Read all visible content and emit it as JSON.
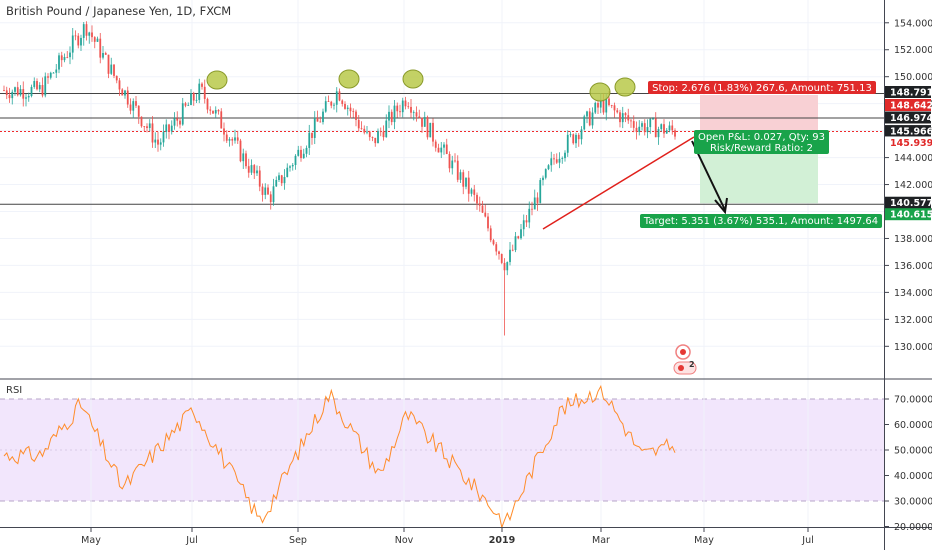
{
  "header": {
    "title": "British Pound / Japanese Yen, 1D, FXCM"
  },
  "rsi": {
    "label": "RSI",
    "ticks": [
      "70.0000",
      "60.0000",
      "50.0000",
      "40.0000",
      "30.0000",
      "20.0000"
    ],
    "tick_values": [
      70,
      60,
      50,
      40,
      30,
      20
    ],
    "upper_band": 70,
    "lower_band": 30,
    "line_color": "#ff8c2a",
    "band_color": "#f2e6fc"
  },
  "price_axis": {
    "ticks": [
      "154.000",
      "152.000",
      "150.000",
      "148.000",
      "146.000",
      "144.000",
      "142.000",
      "140.000",
      "138.000",
      "136.000",
      "134.000",
      "132.000",
      "130.000"
    ],
    "tick_values": [
      154,
      152,
      150,
      148,
      146,
      144,
      142,
      140,
      138,
      136,
      134,
      132,
      130
    ]
  },
  "x_axis": {
    "labels": [
      {
        "text": "May",
        "bold": false
      },
      {
        "text": "Jul",
        "bold": false
      },
      {
        "text": "Sep",
        "bold": false
      },
      {
        "text": "Nov",
        "bold": false
      },
      {
        "text": "2019",
        "bold": true
      },
      {
        "text": "Mar",
        "bold": false
      },
      {
        "text": "May",
        "bold": false
      },
      {
        "text": "Jul",
        "bold": false
      }
    ]
  },
  "price_labels": [
    {
      "text": "148.791",
      "value": 148.791,
      "style": "dark"
    },
    {
      "text": "148.642",
      "value": 148.642,
      "style": "red"
    },
    {
      "text": "146.974",
      "value": 146.974,
      "style": "dark"
    },
    {
      "text": "145.966",
      "value": 145.966,
      "style": "dark"
    },
    {
      "text": "145.939",
      "value": 145.939,
      "style": "redtext"
    },
    {
      "text": "140.577",
      "value": 140.577,
      "style": "dark"
    },
    {
      "text": "140.615",
      "value": 140.615,
      "style": "green"
    }
  ],
  "position": {
    "stop_label": "Stop: 2.676 (1.83%) 267.6, Amount: 751.13",
    "pnl_label": "Open P&L: 0.027, Qty: 93",
    "rr_label": "Risk/Reward Ratio: 2",
    "target_label": "Target: 5.351 (3.67%) 535.1, Amount: 1497.64",
    "entry": 145.966,
    "stop": 148.642,
    "target": 140.615
  },
  "levels": [
    148.791,
    146.974,
    140.577
  ],
  "current_price": 145.939,
  "colors": {
    "up": "#26a69a",
    "down": "#ef5350",
    "stop_zone": "#f8d0d4",
    "target_zone": "#d2f0d6",
    "level_line": "#444444",
    "trendline": "#e0201b",
    "highlight": "#b9c94a",
    "current_line": "#ef2b2b"
  },
  "event_marker": {
    "count": "2"
  },
  "chart_data": [
    {
      "type": "candlestick",
      "title": "British Pound / Japanese Yen, 1D, FXCM",
      "x_range": [
        "2018-03",
        "2019-07"
      ],
      "ylim": [
        129.5,
        155
      ],
      "key_points": [
        {
          "x": "2018-04",
          "y": 149
        },
        {
          "x": "2018-04-28",
          "y": 153.8
        },
        {
          "x": "2018-05-15",
          "y": 150
        },
        {
          "x": "2018-06-10",
          "y": 145
        },
        {
          "x": "2018-07-05",
          "y": 149
        },
        {
          "x": "2018-08-15",
          "y": 141
        },
        {
          "x": "2018-09-10",
          "y": 146
        },
        {
          "x": "2018-09-25",
          "y": 149
        },
        {
          "x": "2018-10-15",
          "y": 145
        },
        {
          "x": "2018-11-05",
          "y": 148.5
        },
        {
          "x": "2018-12-15",
          "y": 141
        },
        {
          "x": "2019-01-03",
          "y": 136
        },
        {
          "x": "2019-02-01",
          "y": 144
        },
        {
          "x": "2019-03-01",
          "y": 148
        },
        {
          "x": "2019-03-20",
          "y": 146.5
        },
        {
          "x": "2019-04-15",
          "y": 145.9
        }
      ],
      "flash_crash_low": 130.8,
      "last_close": 145.939
    },
    {
      "type": "line",
      "title": "RSI",
      "ylim": [
        18,
        76
      ],
      "key_points": [
        {
          "x": "2018-04",
          "y": 48
        },
        {
          "x": "2018-04-25",
          "y": 68
        },
        {
          "x": "2018-05-20",
          "y": 35
        },
        {
          "x": "2018-07-01",
          "y": 66
        },
        {
          "x": "2018-08-10",
          "y": 22
        },
        {
          "x": "2018-09-20",
          "y": 72
        },
        {
          "x": "2018-10-20",
          "y": 40
        },
        {
          "x": "2018-11-05",
          "y": 64
        },
        {
          "x": "2018-12-20",
          "y": 32
        },
        {
          "x": "2019-01-03",
          "y": 21
        },
        {
          "x": "2019-02-05",
          "y": 66
        },
        {
          "x": "2019-03-01",
          "y": 74
        },
        {
          "x": "2019-03-25",
          "y": 48
        },
        {
          "x": "2019-04-15",
          "y": 52
        }
      ]
    }
  ]
}
